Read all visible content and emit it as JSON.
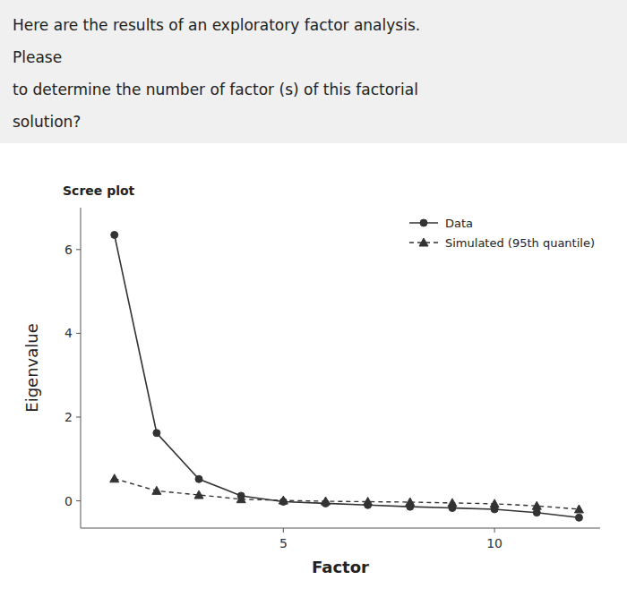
{
  "chart_data": {
    "type": "line",
    "title": "Scree plot",
    "subtitle": [
      "Here are the results of an exploratory factor analysis.",
      "Please",
      "to determine the number of factor (s) of this factorial",
      "solution?"
    ],
    "x_label": "Factor",
    "y_label": "Eigenvalue",
    "x": [
      1,
      2,
      3,
      4,
      5,
      6,
      7,
      8,
      9,
      10,
      11,
      12
    ],
    "xlim": [
      0.2,
      12.5
    ],
    "xticks": [
      5,
      10
    ],
    "ylim": [
      -0.65,
      7.0
    ],
    "yticks": [
      0,
      2,
      4,
      6
    ],
    "grid": false,
    "legend": "upper right",
    "series": [
      {
        "name": "Data",
        "color": "#333333",
        "marker": "circle",
        "line_style": "solid",
        "values": [
          6.35,
          1.62,
          0.52,
          0.12,
          -0.02,
          -0.06,
          -0.1,
          -0.14,
          -0.17,
          -0.2,
          -0.28,
          -0.4
        ]
      },
      {
        "name": "Simulated (95th quantile)",
        "color": "#333333",
        "marker": "triangle",
        "line_style": "dashed",
        "values": [
          0.53,
          0.24,
          0.14,
          0.04,
          0.01,
          -0.01,
          -0.02,
          -0.03,
          -0.05,
          -0.07,
          -0.12,
          -0.2
        ]
      }
    ]
  }
}
